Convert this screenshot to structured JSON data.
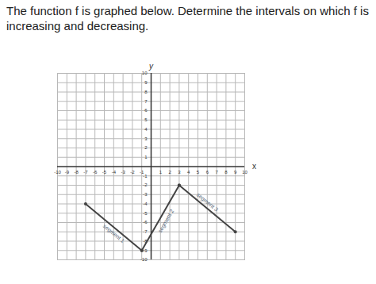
{
  "chart_data": {
    "type": "line",
    "title": "The function f is graphed below. Determine the intervals on which f is increasing and decreasing.",
    "x_label": "x",
    "y_label": "y",
    "xlim": [
      -10,
      10
    ],
    "ylim": [
      -10,
      10
    ],
    "xticks": [
      -10,
      -9,
      -8,
      -7,
      -6,
      -5,
      -4,
      -3,
      -2,
      -1,
      1,
      2,
      3,
      4,
      5,
      6,
      7,
      8,
      9,
      10
    ],
    "yticks": [
      -10,
      -9,
      -8,
      -7,
      -6,
      -5,
      -4,
      -3,
      -2,
      -1,
      1,
      2,
      3,
      4,
      5,
      6,
      7,
      8,
      9,
      10
    ],
    "grid": true,
    "marker": "circle",
    "color": "#444444",
    "series": [
      {
        "name": "segment 1",
        "x": [
          -7,
          -1
        ],
        "values": [
          -4,
          -9
        ]
      },
      {
        "name": "segment 2",
        "x": [
          -1,
          3
        ],
        "values": [
          -9,
          -2
        ]
      },
      {
        "name": "segment 3",
        "x": [
          3,
          9
        ],
        "values": [
          -2,
          -7
        ]
      }
    ]
  }
}
